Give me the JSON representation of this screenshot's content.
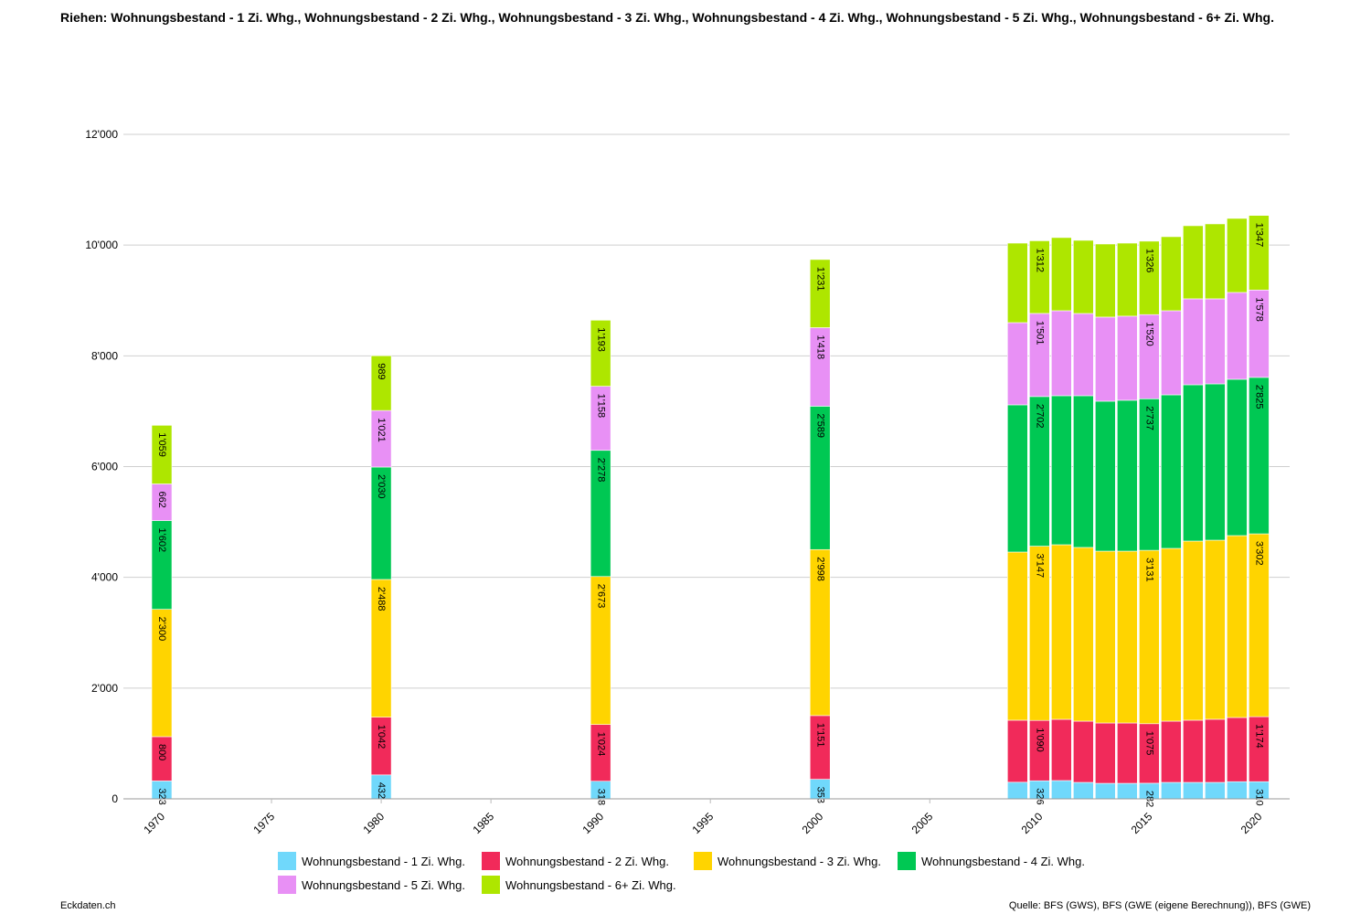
{
  "chart_data": {
    "type": "bar",
    "stacked": true,
    "title": "Riehen: Wohnungsbestand - 1 Zi. Whg., Wohnungsbestand - 2 Zi. Whg., Wohnungsbestand - 3 Zi. Whg., Wohnungsbestand - 4 Zi. Whg., Wohnungsbestand - 5 Zi. Whg., Wohnungsbestand - 6+ Zi. Whg.",
    "xlabel": "",
    "ylabel": "",
    "ylim": [
      0,
      12000
    ],
    "xlim": [
      1968.25,
      2021.4
    ],
    "yticks": [
      0,
      2000,
      4000,
      6000,
      8000,
      10000,
      12000
    ],
    "ytick_labels": [
      "0",
      "2'000",
      "4'000",
      "6'000",
      "8'000",
      "10'000",
      "12'000"
    ],
    "xticks": [
      1970,
      1975,
      1980,
      1985,
      1990,
      1995,
      2000,
      2005,
      2010,
      2015,
      2020
    ],
    "xtick_labels": [
      "1970",
      "1975",
      "1980",
      "1985",
      "1990",
      "1995",
      "2000",
      "2005",
      "2010",
      "2015",
      "2020"
    ],
    "grid": true,
    "legend_placement": "bottom",
    "x": [
      1970,
      1980,
      1990,
      2000,
      2009,
      2010,
      2011,
      2012,
      2013,
      2014,
      2015,
      2016,
      2017,
      2018,
      2019,
      2020
    ],
    "labeled_x": [
      1970,
      1980,
      1990,
      2000,
      2010,
      2015,
      2020
    ],
    "series": [
      {
        "name": "Wohnungsbestand - 1 Zi. Whg.",
        "color": "#70d8fb",
        "values": [
          323,
          432,
          318,
          353,
          300,
          326,
          330,
          297,
          280,
          280,
          282,
          297,
          297,
          297,
          310,
          310
        ]
      },
      {
        "name": "Wohnungsbestand - 2 Zi. Whg.",
        "color": "#f12a5a",
        "values": [
          800,
          1042,
          1024,
          1151,
          1120,
          1090,
          1106,
          1106,
          1090,
          1090,
          1075,
          1106,
          1123,
          1140,
          1159,
          1174
        ]
      },
      {
        "name": "Wohnungsbestand - 3 Zi. Whg.",
        "color": "#ffd400",
        "values": [
          2300,
          2488,
          2673,
          2998,
          3037,
          3147,
          3153,
          3137,
          3103,
          3103,
          3131,
          3120,
          3235,
          3234,
          3285,
          3302
        ]
      },
      {
        "name": "Wohnungsbestand - 4 Zi. Whg.",
        "color": "#00c853",
        "values": [
          1602,
          2030,
          2278,
          2589,
          2658,
          2702,
          2691,
          2740,
          2708,
          2725,
          2737,
          2773,
          2823,
          2823,
          2823,
          2825
        ]
      },
      {
        "name": "Wohnungsbestand - 5 Zi. Whg.",
        "color": "#e890f5",
        "values": [
          662,
          1021,
          1158,
          1418,
          1485,
          1501,
          1535,
          1485,
          1519,
          1519,
          1520,
          1519,
          1552,
          1536,
          1568,
          1578
        ]
      },
      {
        "name": "Wohnungsbestand - 6+ Zi. Whg.",
        "color": "#aee600",
        "values": [
          1059,
          989,
          1193,
          1231,
          1436,
          1312,
          1321,
          1321,
          1320,
          1319,
          1326,
          1337,
          1320,
          1353,
          1337,
          1347
        ]
      }
    ]
  },
  "footer": {
    "left": "Eckdaten.ch",
    "right": "Quelle: BFS (GWS), BFS (GWE (eigene Berechnung)), BFS (GWE)"
  }
}
